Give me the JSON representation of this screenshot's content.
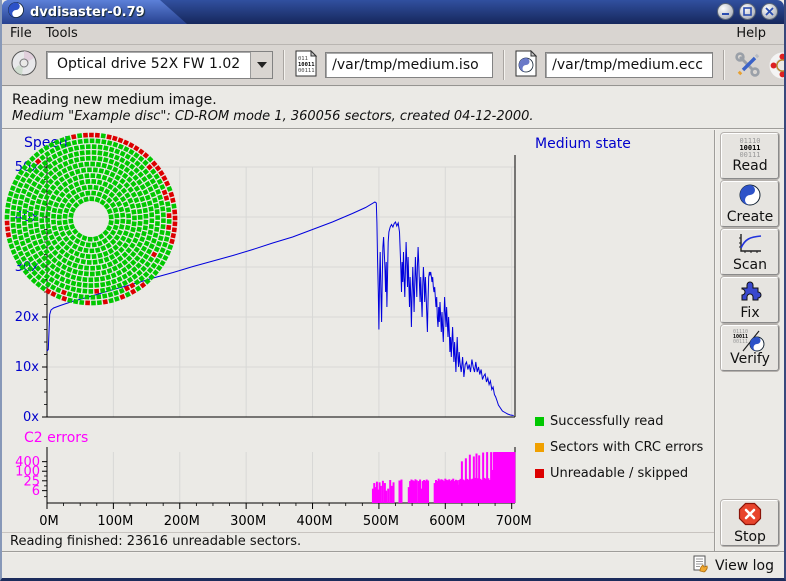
{
  "window": {
    "title": "dvdisaster-0.79"
  },
  "menu": {
    "file": "File",
    "tools": "Tools",
    "help": "Help"
  },
  "toolbar": {
    "drive_select": "Optical drive 52X FW 1.02",
    "image_file": "/var/tmp/medium.iso",
    "ecc_file": "/var/tmp/medium.ecc"
  },
  "heading": {
    "line1": "Reading new medium image.",
    "line2": "Medium \"Example disc\": CD-ROM mode 1, 360056 sectors, created 04-12-2000."
  },
  "sidebar": {
    "buttons": [
      {
        "label": "Read",
        "icon_lines": [
          "01110",
          "10011",
          "00111"
        ]
      },
      {
        "label": "Create"
      },
      {
        "label": "Scan"
      },
      {
        "label": "Fix"
      },
      {
        "label": "Verify",
        "icon_lines": [
          "01110",
          "10011",
          "00111"
        ]
      }
    ],
    "stop_label": "Stop"
  },
  "statusbar": {
    "text": "Reading finished: 23616 unreadable sectors."
  },
  "footer": {
    "view_log": "View log"
  },
  "medium_state": {
    "title": "Medium state",
    "legend": [
      {
        "label": "Successfully read",
        "color": "#00c800"
      },
      {
        "label": "Sectors with CRC errors",
        "color": "#f0a000"
      },
      {
        "label": "Unreadable / skipped",
        "color": "#dc0000"
      }
    ],
    "disc": {
      "green": "#00c800",
      "red": "#dc0000",
      "r_inner": 20,
      "r_outer": 84,
      "ring_step": 5.8,
      "red_arcs": [
        {
          "ring": 0,
          "from": -12,
          "to": 106,
          "prob": 0.93
        },
        {
          "ring": 1,
          "from": 22,
          "to": 100,
          "prob": 0.28
        }
      ],
      "red_spots": [
        [
          0,
          142
        ],
        [
          0,
          150
        ],
        [
          0,
          158
        ],
        [
          0,
          170
        ],
        [
          0,
          183
        ],
        [
          0,
          198
        ],
        [
          0,
          208
        ],
        [
          0,
          262
        ],
        [
          0,
          268
        ],
        [
          1,
          150
        ],
        [
          1,
          200
        ],
        [
          2,
          175
        ],
        [
          1,
          318
        ],
        [
          2,
          120
        ]
      ]
    }
  },
  "chart_data": [
    {
      "type": "line",
      "title": "Speed",
      "color": "#0000dd",
      "label_color": "#0000cc",
      "ylim": [
        0,
        50
      ],
      "xlim": [
        0,
        705
      ],
      "y_tick_labels": [
        "0x",
        "10x",
        "20x",
        "30x",
        "40x",
        "50x"
      ],
      "x_tick_labels": [
        "0M",
        "100M",
        "200M",
        "300M",
        "400M",
        "500M",
        "600M",
        "700M"
      ],
      "points": [
        [
          0,
          13.2
        ],
        [
          2,
          13.5
        ],
        [
          4,
          20.5
        ],
        [
          6,
          21.4
        ],
        [
          10,
          21.8
        ],
        [
          20,
          22.3
        ],
        [
          40,
          23.2
        ],
        [
          60,
          23.9
        ],
        [
          80,
          24.7
        ],
        [
          100,
          25.5
        ],
        [
          130,
          26.6
        ],
        [
          160,
          27.8
        ],
        [
          190,
          28.9
        ],
        [
          220,
          30.1
        ],
        [
          250,
          31.2
        ],
        [
          280,
          32.3
        ],
        [
          310,
          33.5
        ],
        [
          340,
          34.8
        ],
        [
          370,
          36
        ],
        [
          400,
          37.5
        ],
        [
          430,
          39
        ],
        [
          460,
          40.7
        ],
        [
          480,
          41.9
        ],
        [
          494,
          43
        ],
        [
          496,
          42.8
        ],
        [
          497,
          39
        ],
        [
          498,
          31
        ],
        [
          499,
          25
        ],
        [
          500,
          17.5
        ],
        [
          501,
          28
        ],
        [
          502,
          33
        ],
        [
          503,
          25
        ],
        [
          504,
          19
        ],
        [
          505,
          27
        ],
        [
          506,
          34
        ],
        [
          507,
          36
        ],
        [
          509,
          30
        ],
        [
          510,
          25
        ],
        [
          511,
          31
        ],
        [
          512,
          22
        ],
        [
          513,
          28
        ],
        [
          514,
          35
        ],
        [
          515,
          37
        ],
        [
          517,
          38
        ],
        [
          519,
          38.5
        ],
        [
          521,
          38
        ],
        [
          523,
          38.7
        ],
        [
          525,
          39
        ],
        [
          527,
          38.2
        ],
        [
          529,
          38.8
        ],
        [
          531,
          37
        ],
        [
          533,
          30
        ],
        [
          534,
          25
        ],
        [
          535,
          31
        ],
        [
          536,
          27
        ],
        [
          537,
          33
        ],
        [
          538,
          28
        ],
        [
          539,
          24
        ],
        [
          540,
          30
        ],
        [
          541,
          35
        ],
        [
          542,
          31
        ],
        [
          543,
          26
        ],
        [
          544,
          32
        ],
        [
          545,
          27
        ],
        [
          546,
          22
        ],
        [
          547,
          28
        ],
        [
          548,
          24
        ],
        [
          549,
          18
        ],
        [
          550,
          25
        ],
        [
          551,
          30
        ],
        [
          552,
          26
        ],
        [
          553,
          21
        ],
        [
          554,
          27
        ],
        [
          555,
          32
        ],
        [
          556,
          28
        ],
        [
          557,
          24
        ],
        [
          558,
          30
        ],
        [
          559,
          34
        ],
        [
          560,
          31
        ],
        [
          561,
          27
        ],
        [
          562,
          23
        ],
        [
          563,
          28
        ],
        [
          564,
          24
        ],
        [
          565,
          20
        ],
        [
          566,
          26
        ],
        [
          567,
          30
        ],
        [
          568,
          27
        ],
        [
          569,
          23
        ],
        [
          570,
          28
        ],
        [
          571,
          25
        ],
        [
          572,
          21
        ],
        [
          573,
          17
        ],
        [
          574,
          23
        ],
        [
          575,
          28
        ],
        [
          576,
          29
        ],
        [
          577,
          28.5
        ],
        [
          578,
          29
        ],
        [
          579,
          28
        ],
        [
          580,
          27
        ],
        [
          581,
          28
        ],
        [
          582,
          26
        ],
        [
          583,
          25
        ],
        [
          584,
          26
        ],
        [
          585,
          24
        ],
        [
          586,
          22
        ],
        [
          587,
          24
        ],
        [
          588,
          20
        ],
        [
          589,
          18
        ],
        [
          590,
          22
        ],
        [
          591,
          19
        ],
        [
          592,
          23
        ],
        [
          593,
          20
        ],
        [
          594,
          17
        ],
        [
          595,
          21
        ],
        [
          596,
          18
        ],
        [
          597,
          15
        ],
        [
          598,
          20
        ],
        [
          599,
          24
        ],
        [
          600,
          21
        ],
        [
          601,
          18
        ],
        [
          602,
          22
        ],
        [
          603,
          19
        ],
        [
          604,
          16
        ],
        [
          605,
          20
        ],
        [
          606,
          17
        ],
        [
          607,
          13
        ],
        [
          608,
          16
        ],
        [
          609,
          12
        ],
        [
          610,
          15
        ],
        [
          611,
          18
        ],
        [
          612,
          14
        ],
        [
          613,
          11
        ],
        [
          614,
          15
        ],
        [
          615,
          12
        ],
        [
          616,
          9
        ],
        [
          617,
          13
        ],
        [
          618,
          16
        ],
        [
          619,
          12
        ],
        [
          620,
          10
        ],
        [
          621,
          13
        ],
        [
          622,
          11
        ],
        [
          624,
          9
        ],
        [
          626,
          12
        ],
        [
          628,
          8
        ],
        [
          630,
          10.5
        ],
        [
          632,
          11
        ],
        [
          634,
          9.5
        ],
        [
          636,
          10.5
        ],
        [
          638,
          9
        ],
        [
          640,
          11.5
        ],
        [
          642,
          10
        ],
        [
          644,
          9
        ],
        [
          646,
          11
        ],
        [
          648,
          9
        ],
        [
          650,
          10
        ],
        [
          652,
          8.5
        ],
        [
          654,
          9.5
        ],
        [
          656,
          7.5
        ],
        [
          658,
          8.2
        ],
        [
          660,
          8.6
        ],
        [
          662,
          7
        ],
        [
          664,
          7.8
        ],
        [
          666,
          6.5
        ],
        [
          668,
          7.2
        ],
        [
          670,
          5.5
        ],
        [
          672,
          6
        ],
        [
          674,
          4.5
        ],
        [
          676,
          4
        ],
        [
          678,
          3.2
        ],
        [
          680,
          2.4
        ],
        [
          683,
          1.8
        ],
        [
          686,
          1.2
        ],
        [
          690,
          0.9
        ],
        [
          694,
          0.6
        ],
        [
          698,
          0.4
        ],
        [
          703,
          0.3
        ]
      ]
    },
    {
      "type": "bar",
      "title": "C2 errors",
      "color": "#ff00ff",
      "y_scale": "log",
      "y_tick_labels": [
        "400",
        "100",
        "25",
        "6"
      ],
      "y_ticks": [
        400,
        100,
        25,
        6
      ],
      "bars": [
        [
          491,
          8
        ],
        [
          493,
          18
        ],
        [
          495,
          10
        ],
        [
          497,
          22
        ],
        [
          499,
          7
        ],
        [
          501,
          20
        ],
        [
          503,
          12
        ],
        [
          506,
          25
        ],
        [
          509,
          18
        ],
        [
          511,
          6
        ],
        [
          514,
          8
        ],
        [
          517,
          28
        ],
        [
          519,
          12
        ],
        [
          522,
          20
        ],
        [
          531,
          26
        ],
        [
          534,
          30
        ],
        [
          545,
          10
        ],
        [
          547,
          24
        ],
        [
          549,
          30
        ],
        [
          551,
          27
        ],
        [
          553,
          24
        ],
        [
          555,
          31
        ],
        [
          557,
          27
        ],
        [
          560,
          24
        ],
        [
          562,
          30
        ],
        [
          564,
          8
        ],
        [
          566,
          24
        ],
        [
          568,
          28
        ],
        [
          570,
          25
        ],
        [
          572,
          30
        ],
        [
          574,
          26
        ],
        [
          584,
          18
        ],
        [
          586,
          28
        ],
        [
          588,
          24
        ],
        [
          590,
          34
        ],
        [
          592,
          27
        ],
        [
          594,
          31
        ],
        [
          596,
          29
        ],
        [
          598,
          24
        ],
        [
          600,
          34
        ],
        [
          602,
          29
        ],
        [
          604,
          27
        ],
        [
          606,
          31
        ],
        [
          608,
          25
        ],
        [
          610,
          29
        ],
        [
          612,
          34
        ],
        [
          614,
          24
        ],
        [
          616,
          29
        ],
        [
          618,
          27
        ],
        [
          620,
          14
        ],
        [
          621,
          28
        ],
        [
          623,
          33
        ],
        [
          625,
          420
        ],
        [
          627,
          30
        ],
        [
          629,
          27
        ],
        [
          631,
          650
        ],
        [
          633,
          33
        ],
        [
          635,
          29
        ],
        [
          637,
          1100
        ],
        [
          639,
          31
        ],
        [
          641,
          34
        ],
        [
          643,
          850
        ],
        [
          645,
          38
        ],
        [
          647,
          1300
        ],
        [
          649,
          36
        ],
        [
          651,
          1000
        ],
        [
          653,
          33
        ],
        [
          655,
          28
        ],
        [
          657,
          1500
        ],
        [
          659,
          38
        ],
        [
          661,
          33
        ],
        [
          663,
          1600
        ],
        [
          665,
          36
        ],
        [
          667,
          28
        ],
        [
          669,
          1600
        ],
        [
          671,
          120
        ],
        [
          673,
          1600
        ],
        [
          674,
          1500
        ],
        [
          675,
          1650
        ],
        [
          676,
          1600
        ],
        [
          677,
          1550
        ],
        [
          678,
          1650
        ],
        [
          679,
          1600
        ],
        [
          680,
          1600
        ],
        [
          681,
          1500
        ],
        [
          682,
          1650
        ],
        [
          683,
          1600
        ],
        [
          684,
          1600
        ],
        [
          685,
          1550
        ],
        [
          686,
          1650
        ],
        [
          687,
          1600
        ],
        [
          688,
          1500
        ],
        [
          689,
          1650
        ],
        [
          690,
          1600
        ],
        [
          691,
          1600
        ],
        [
          692,
          1550
        ],
        [
          693,
          1650
        ],
        [
          694,
          1600
        ],
        [
          695,
          1500
        ],
        [
          696,
          1650
        ],
        [
          697,
          1600
        ],
        [
          698,
          1600
        ],
        [
          699,
          1550
        ],
        [
          700,
          1650
        ],
        [
          701,
          1600
        ],
        [
          702,
          1500
        ],
        [
          703,
          1650
        ],
        [
          704,
          1600
        ]
      ]
    }
  ]
}
